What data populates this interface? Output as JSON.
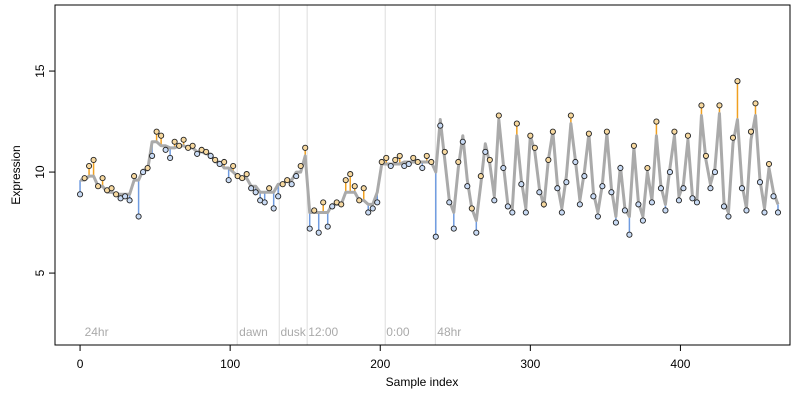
{
  "chart_data": {
    "type": "scatter",
    "xlabel": "Sample index",
    "ylabel": "Expression",
    "xlim": [
      -16.7,
      473
    ],
    "ylim": [
      1.44,
      18.27
    ],
    "xticks": [
      0,
      100,
      200,
      300,
      400
    ],
    "yticks": [
      5,
      10,
      15
    ],
    "point_color": "#222222",
    "above_color": "#f0a020",
    "below_color": "#6f9be0",
    "fit_color": "#aaaaaa",
    "vline_color": "#dddddd",
    "vlines": [
      104.7,
      132.7,
      151.3,
      203.3,
      236.7
    ],
    "annotations": [
      {
        "x": 3,
        "text": "24hr"
      },
      {
        "x": 106,
        "text": "dawn"
      },
      {
        "x": 133.5,
        "text": "dusk"
      },
      {
        "x": 152,
        "text": "12:00"
      },
      {
        "x": 204,
        "text": "0:00"
      },
      {
        "x": 238,
        "text": "48hr"
      }
    ],
    "x": [
      0,
      3,
      6,
      9,
      12,
      15,
      18,
      21,
      24,
      27,
      30,
      33,
      36,
      39,
      42,
      45,
      48,
      51,
      54,
      57,
      60,
      63,
      66,
      69,
      72,
      75,
      78,
      81,
      84,
      87,
      90,
      93,
      96,
      99,
      102,
      105,
      108,
      111,
      114,
      117,
      120,
      123,
      126,
      129,
      132,
      135,
      138,
      141,
      144,
      147,
      150,
      153,
      156,
      159,
      162,
      165,
      168,
      171,
      174,
      177,
      180,
      183,
      186,
      189,
      192,
      195,
      198,
      201,
      204,
      207,
      210,
      213,
      216,
      219,
      222,
      225,
      228,
      231,
      234,
      237,
      240,
      243,
      246,
      249,
      252,
      255,
      258,
      261,
      264,
      267,
      270,
      273,
      276,
      279,
      282,
      285,
      288,
      291,
      294,
      297,
      300,
      303,
      306,
      309,
      312,
      315,
      318,
      321,
      324,
      327,
      330,
      333,
      336,
      339,
      342,
      345,
      348,
      351,
      354,
      357,
      360,
      363,
      366,
      369,
      372,
      375,
      378,
      381,
      384,
      387,
      390,
      393,
      396,
      399,
      402,
      405,
      408,
      411,
      414,
      417,
      420,
      423,
      426,
      429,
      432,
      435,
      438,
      441,
      444,
      447,
      450,
      453,
      456,
      459,
      462,
      465
    ],
    "values": [
      8.9,
      9.7,
      10.3,
      10.6,
      9.3,
      9.7,
      9.1,
      9.2,
      8.9,
      8.7,
      8.8,
      8.6,
      9.8,
      7.8,
      10.0,
      10.2,
      10.8,
      12.0,
      11.8,
      11.1,
      10.7,
      11.5,
      11.3,
      11.6,
      11.2,
      11.3,
      10.9,
      11.1,
      11.0,
      10.8,
      10.6,
      10.4,
      10.5,
      9.6,
      10.3,
      9.8,
      9.7,
      9.9,
      9.2,
      9.0,
      8.6,
      8.5,
      9.2,
      8.2,
      8.8,
      9.4,
      9.6,
      9.4,
      9.8,
      10.3,
      11.2,
      7.2,
      8.1,
      7.0,
      8.5,
      7.3,
      8.3,
      8.5,
      8.4,
      9.6,
      9.9,
      9.3,
      8.6,
      9.2,
      8.0,
      8.2,
      8.5,
      10.5,
      10.7,
      10.3,
      10.6,
      10.8,
      10.3,
      10.4,
      10.7,
      10.5,
      10.2,
      10.8,
      10.5,
      6.8,
      12.3,
      11.0,
      8.5,
      7.2,
      10.5,
      11.5,
      9.3,
      8.2,
      7.0,
      9.8,
      11.0,
      10.6,
      8.6,
      12.8,
      10.2,
      8.3,
      8.0,
      12.4,
      9.4,
      8.0,
      11.8,
      11.2,
      9.0,
      8.4,
      10.6,
      12.0,
      9.2,
      8.0,
      9.5,
      12.8,
      10.5,
      8.4,
      9.8,
      11.9,
      8.8,
      7.8,
      9.3,
      12.0,
      9.0,
      7.5,
      10.2,
      8.1,
      6.9,
      11.3,
      8.4,
      7.6,
      10.2,
      8.5,
      12.5,
      9.2,
      8.1,
      10.0,
      12.0,
      8.6,
      9.2,
      11.8,
      8.7,
      8.5,
      13.3,
      10.8,
      9.2,
      10.0,
      13.3,
      8.3,
      7.8,
      11.7,
      14.5,
      9.2,
      8.1,
      12.0,
      13.4,
      9.5,
      8.0,
      10.4,
      8.8,
      8.0
    ],
    "fitted": [
      9.6,
      9.6,
      9.8,
      9.8,
      9.3,
      9.3,
      9.0,
      9.0,
      8.9,
      8.9,
      8.9,
      8.9,
      9.6,
      9.6,
      10.1,
      10.1,
      11.5,
      11.5,
      11.3,
      11.3,
      11.2,
      11.2,
      11.3,
      11.3,
      11.2,
      11.2,
      11.0,
      11.0,
      10.9,
      10.9,
      10.5,
      10.5,
      10.2,
      10.2,
      10.0,
      9.8,
      9.7,
      9.7,
      9.3,
      9.3,
      9.0,
      9.0,
      9.0,
      9.0,
      9.4,
      9.4,
      9.6,
      9.6,
      10.0,
      10.0,
      10.8,
      8.0,
      8.0,
      8.0,
      8.0,
      8.0,
      8.4,
      8.4,
      8.4,
      9.0,
      9.0,
      9.0,
      8.6,
      8.6,
      8.4,
      8.4,
      9.0,
      10.4,
      10.4,
      10.4,
      10.4,
      10.4,
      10.5,
      10.5,
      10.5,
      10.5,
      10.5,
      10.5,
      10.5,
      10.0,
      12.6,
      10.6,
      8.6,
      8.0,
      10.2,
      11.8,
      9.6,
      8.2,
      7.6,
      9.4,
      11.4,
      10.4,
      8.8,
      12.6,
      10.4,
      8.4,
      8.2,
      11.8,
      9.6,
      8.2,
      11.8,
      11.0,
      9.2,
      8.3,
      10.6,
      12.0,
      9.4,
      8.2,
      9.8,
      12.4,
      10.6,
      8.6,
      10.0,
      11.9,
      9.0,
      8.0,
      9.4,
      11.9,
      9.2,
      7.8,
      10.3,
      8.2,
      7.8,
      11.2,
      8.5,
      7.8,
      10.0,
      8.6,
      11.8,
      9.3,
      8.4,
      10.2,
      11.8,
      8.8,
      9.4,
      11.6,
      8.8,
      8.6,
      12.8,
      10.6,
      9.4,
      10.2,
      12.9,
      8.5,
      8.0,
      11.4,
      12.6,
      9.4,
      8.2,
      11.6,
      12.8,
      9.6,
      8.2,
      10.2,
      9.0,
      8.4
    ]
  }
}
